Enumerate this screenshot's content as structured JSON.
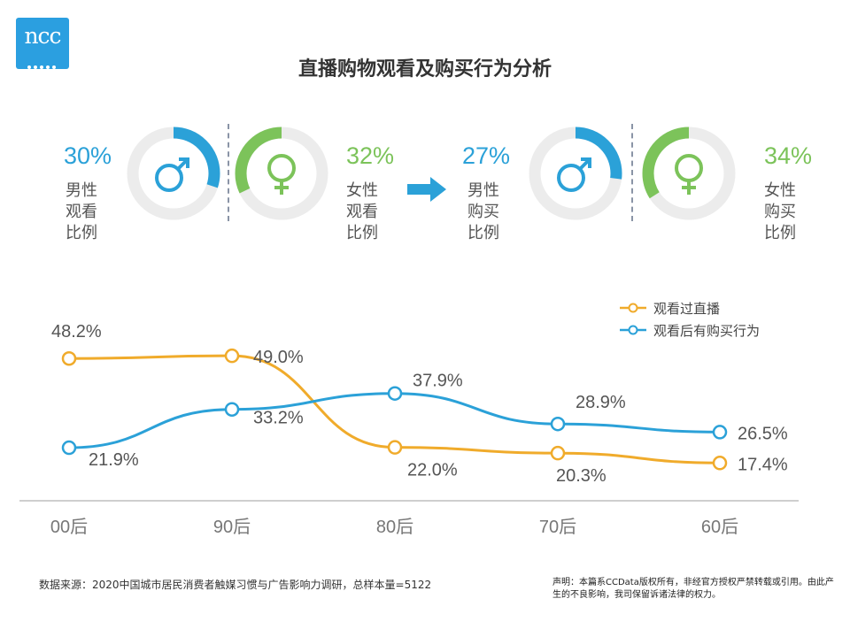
{
  "brand": {
    "logo_text": "ncc"
  },
  "title": "直播购物观看及购买行为分析",
  "gender_stats": [
    {
      "pct": "30%",
      "value": 0.3,
      "label": "男性\n观看\n比例",
      "icon": "male-icon",
      "color": "#2ba1d8"
    },
    {
      "pct": "32%",
      "value": 0.32,
      "label": "女性\n观看\n比例",
      "icon": "female-icon",
      "color": "#7cc35a"
    },
    {
      "pct": "27%",
      "value": 0.27,
      "label": "男性\n购买\n比例",
      "icon": "male-icon",
      "color": "#2ba1d8"
    },
    {
      "pct": "34%",
      "value": 0.34,
      "label": "女性\n购买\n比例",
      "icon": "female-icon",
      "color": "#7cc35a"
    }
  ],
  "chart_data": {
    "type": "line",
    "categories": [
      "00后",
      "90后",
      "80后",
      "70后",
      "60后"
    ],
    "series": [
      {
        "name": "观看过直播",
        "color": "#f0ab2b",
        "values": [
          48.2,
          49.0,
          22.0,
          20.3,
          17.4
        ],
        "labels": [
          "48.2%",
          "49.0%",
          "22.0%",
          "20.3%",
          "17.4%"
        ]
      },
      {
        "name": "观看后有购买行为",
        "color": "#2ba1d8",
        "values": [
          21.9,
          33.2,
          37.9,
          28.9,
          26.5
        ],
        "labels": [
          "21.9%",
          "33.2%",
          "37.9%",
          "28.9%",
          "26.5%"
        ]
      }
    ],
    "legend_position": "top-right",
    "grid": false
  },
  "footer": {
    "source": "数据来源：2020中国城市居民消费者触媒习惯与广告影响力调研，总样本量=5122",
    "disclaimer": "声明：本篇系CCData版权所有，非经官方授权严禁转载或引用。由此产生的不良影响，我司保留诉诸法律的权力。"
  }
}
